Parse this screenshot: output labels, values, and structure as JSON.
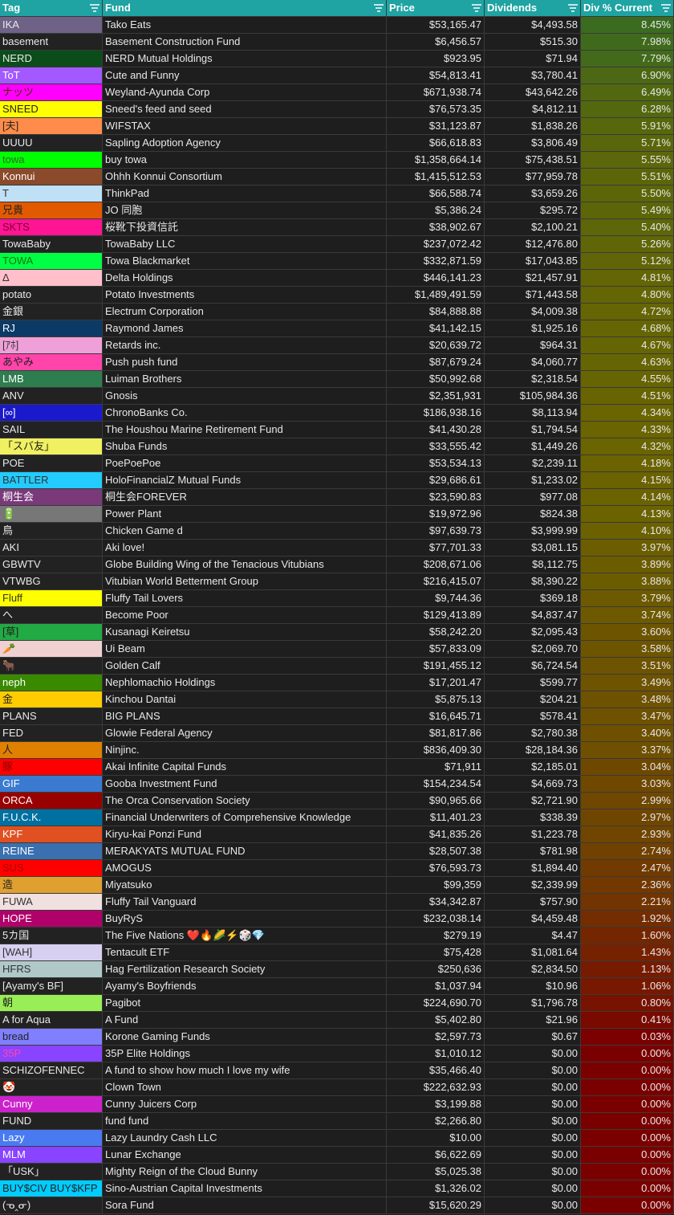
{
  "table": {
    "headers": [
      "Tag",
      "Fund",
      "Price",
      "Dividends",
      "Div % Current"
    ],
    "rows": [
      [
        "IKA",
        "Tako Eats",
        "$53,165.47",
        "$4,493.58",
        "8.45%"
      ],
      [
        "basement",
        "Basement Construction Fund",
        "$6,456.57",
        "$515.30",
        "7.98%"
      ],
      [
        "NERD",
        "NERD Mutual Holdings",
        "$923.95",
        "$71.94",
        "7.79%"
      ],
      [
        "ToT",
        "Cute and Funny",
        "$54,813.41",
        "$3,780.41",
        "6.90%"
      ],
      [
        "ナッツ",
        "Weyland-Ayunda Corp",
        "$671,938.74",
        "$43,642.26",
        "6.49%"
      ],
      [
        "SNEED",
        "Sneed's feed and seed",
        "$76,573.35",
        "$4,812.11",
        "6.28%"
      ],
      [
        "[夫]",
        "WIFSTAX",
        "$31,123.87",
        "$1,838.26",
        "5.91%"
      ],
      [
        "UUUU",
        "Sapling Adoption Agency",
        "$66,618.83",
        "$3,806.49",
        "5.71%"
      ],
      [
        "towa",
        "buy towa",
        "$1,358,664.14",
        "$75,438.51",
        "5.55%"
      ],
      [
        "Konnui",
        "Ohhh Konnui Consortium",
        "$1,415,512.53",
        "$77,959.78",
        "5.51%"
      ],
      [
        "T",
        "ThinkPad",
        "$66,588.74",
        "$3,659.26",
        "5.50%"
      ],
      [
        "兄貴",
        "JO 同胞",
        "$5,386.24",
        "$295.72",
        "5.49%"
      ],
      [
        "SKTS",
        "桜靴下投資信託",
        "$38,902.67",
        "$2,100.21",
        "5.40%"
      ],
      [
        "TowaBaby",
        "TowaBaby LLC",
        "$237,072.42",
        "$12,476.80",
        "5.26%"
      ],
      [
        "TOWA",
        "Towa Blackmarket",
        "$332,871.59",
        "$17,043.85",
        "5.12%"
      ],
      [
        "Δ",
        "Delta Holdings",
        "$446,141.23",
        "$21,457.91",
        "4.81%"
      ],
      [
        "potato",
        "Potato Investments",
        "$1,489,491.59",
        "$71,443.58",
        "4.80%"
      ],
      [
        "金銀",
        "Electrum Corporation",
        "$84,888.88",
        "$4,009.38",
        "4.72%"
      ],
      [
        "RJ",
        "Raymond James",
        "$41,142.15",
        "$1,925.16",
        "4.68%"
      ],
      [
        "[ｱﾎ]",
        "Retards inc.",
        "$20,639.72",
        "$964.31",
        "4.67%"
      ],
      [
        "あやみ",
        "Push push fund",
        "$87,679.24",
        "$4,060.77",
        "4.63%"
      ],
      [
        "LMB",
        "Luiman Brothers",
        "$50,992.68",
        "$2,318.54",
        "4.55%"
      ],
      [
        "ANV",
        "Gnosis",
        "$2,351,931",
        "$105,984.36",
        "4.51%"
      ],
      [
        "[∞]",
        "ChronoBanks Co.",
        "$186,938.16",
        "$8,113.94",
        "4.34%"
      ],
      [
        "SAIL",
        "The Houshou Marine Retirement Fund",
        "$41,430.28",
        "$1,794.54",
        "4.33%"
      ],
      [
        "「スバ友」",
        "Shuba Funds",
        "$33,555.42",
        "$1,449.26",
        "4.32%"
      ],
      [
        "POE",
        "PoePoePoe",
        "$53,534.13",
        "$2,239.11",
        "4.18%"
      ],
      [
        "BATTLER",
        "HoloFinancialZ Mutual Funds",
        "$29,686.61",
        "$1,233.02",
        "4.15%"
      ],
      [
        "桐生会",
        "桐生会FOREVER",
        "$23,590.83",
        "$977.08",
        "4.14%"
      ],
      [
        "🔋",
        "Power Plant",
        "$19,972.96",
        "$824.38",
        "4.13%"
      ],
      [
        "鳥",
        "Chicken Game d",
        "$97,639.73",
        "$3,999.99",
        "4.10%"
      ],
      [
        "AKI",
        "Aki love!",
        "$77,701.33",
        "$3,081.15",
        "3.97%"
      ],
      [
        "GBWTV",
        "Globe Building Wing of the Tenacious Vitubians",
        "$208,671.06",
        "$8,112.75",
        "3.89%"
      ],
      [
        "VTWBG",
        "Vitubian World Betterment Group",
        "$216,415.07",
        "$8,390.22",
        "3.88%"
      ],
      [
        "Fluff",
        "Fluffy Tail Lovers",
        "$9,744.36",
        "$369.18",
        "3.79%"
      ],
      [
        "へ",
        "Become Poor",
        "$129,413.89",
        "$4,837.47",
        "3.74%"
      ],
      [
        "[草]",
        "Kusanagi Keiretsu",
        "$58,242.20",
        "$2,095.43",
        "3.60%"
      ],
      [
        "🥕",
        "Ui Beam",
        "$57,833.09",
        "$2,069.70",
        "3.58%"
      ],
      [
        "🐂",
        "Golden Calf",
        "$191,455.12",
        "$6,724.54",
        "3.51%"
      ],
      [
        "neph",
        "Nephlomachio Holdings",
        "$17,201.47",
        "$599.77",
        "3.49%"
      ],
      [
        "金",
        "Kinchou Dantai",
        "$5,875.13",
        "$204.21",
        "3.48%"
      ],
      [
        "PLANS",
        "BIG PLANS",
        "$16,645.71",
        "$578.41",
        "3.47%"
      ],
      [
        "FED",
        "Glowie Federal Agency",
        "$81,817.86",
        "$2,780.38",
        "3.40%"
      ],
      [
        "人",
        "Ninjinc.",
        "$836,409.30",
        "$28,184.36",
        "3.37%"
      ],
      [
        "豚",
        "Akai Infinite Capital Funds",
        "$71,911",
        "$2,185.01",
        "3.04%"
      ],
      [
        "GIF",
        "Gooba Investment Fund",
        "$154,234.54",
        "$4,669.73",
        "3.03%"
      ],
      [
        "ORCA",
        "The Orca Conservation Society",
        "$90,965.66",
        "$2,721.90",
        "2.99%"
      ],
      [
        "F.U.C.K.",
        "Financial Underwriters of Comprehensive Knowledge",
        "$11,401.23",
        "$338.39",
        "2.97%"
      ],
      [
        "KPF",
        "Kiryu-kai Ponzi Fund",
        "$41,835.26",
        "$1,223.78",
        "2.93%"
      ],
      [
        "REINE",
        "MERAKYATS MUTUAL FUND",
        "$28,507.38",
        "$781.98",
        "2.74%"
      ],
      [
        "SUS",
        "AMOGUS",
        "$76,593.73",
        "$1,894.40",
        "2.47%"
      ],
      [
        "造",
        "Miyatsuko",
        "$99,359",
        "$2,339.99",
        "2.36%"
      ],
      [
        "FUWA",
        "Fluffy Tail Vanguard",
        "$34,342.87",
        "$757.90",
        "2.21%"
      ],
      [
        "HOPE",
        "BuyRyS",
        "$232,038.14",
        "$4,459.48",
        "1.92%"
      ],
      [
        "5カ国",
        "The Five Nations ❤️🔥🌽⚡🎲💎",
        "$279.19",
        "$4.47",
        "1.60%"
      ],
      [
        "[WAH]",
        "Tentacult ETF",
        "$75,428",
        "$1,081.64",
        "1.43%"
      ],
      [
        "HFRS",
        "Hag Fertilization Research Society",
        "$250,636",
        "$2,834.50",
        "1.13%"
      ],
      [
        "[Ayamy's BF]",
        "Ayamy's Boyfriends",
        "$1,037.94",
        "$10.96",
        "1.06%"
      ],
      [
        "朝",
        "Pagibot",
        "$224,690.70",
        "$1,796.78",
        "0.80%"
      ],
      [
        "A for Aqua",
        "A Fund",
        "$5,402.80",
        "$21.96",
        "0.41%"
      ],
      [
        "bread",
        "Korone Gaming Funds",
        "$2,597.73",
        "$0.67",
        "0.03%"
      ],
      [
        "35P",
        "35P Elite Holdings",
        "$1,010.12",
        "$0.00",
        "0.00%"
      ],
      [
        "SCHIZOFENNEC",
        "A fund to show how much I love my wife",
        "$35,466.40",
        "$0.00",
        "0.00%"
      ],
      [
        "🤡",
        "Clown Town",
        "$222,632.93",
        "$0.00",
        "0.00%"
      ],
      [
        "Cunny",
        "Cunny Juicers Corp",
        "$3,199.88",
        "$0.00",
        "0.00%"
      ],
      [
        "FUND",
        "fund fund",
        "$2,266.80",
        "$0.00",
        "0.00%"
      ],
      [
        "Lazy",
        "Lazy Laundry Cash LLC",
        "$10.00",
        "$0.00",
        "0.00%"
      ],
      [
        "MLM",
        "Lunar Exchange",
        "$6,622.69",
        "$0.00",
        "0.00%"
      ],
      [
        "「USK」",
        "Mighty Reign of the Cloud Bunny",
        "$5,025.38",
        "$0.00",
        "0.00%"
      ],
      [
        "BUY$CIV BUY$KFP",
        "Sino-Austrian Capital Investments",
        "$1,326.02",
        "$0.00",
        "0.00%"
      ],
      [
        "(ᓀ‸ᓂ)",
        "Sora Fund",
        "$15,620.29",
        "$0.00",
        "0.00%"
      ]
    ],
    "tag_colors": [
      [
        "#6f6287",
        "#e8e8e8"
      ],
      [
        "#222222",
        "#e8e8e8"
      ],
      [
        "#0b4d1a",
        "#e8e8e8"
      ],
      [
        "#a259ff",
        "#ffffff"
      ],
      [
        "#ff00ff",
        "#4a2000"
      ],
      [
        "#ffff00",
        "#222222"
      ],
      [
        "#ff8c4a",
        "#222222"
      ],
      [
        "#222222",
        "#e8e8e8"
      ],
      [
        "#00ff00",
        "#336633"
      ],
      [
        "#8b4a2a",
        "#ffffff"
      ],
      [
        "#bfe0f5",
        "#333333"
      ],
      [
        "#e25a00",
        "#222222"
      ],
      [
        "#ff1493",
        "#7a0035"
      ],
      [
        "#222222",
        "#e8e8e8"
      ],
      [
        "#00ff44",
        "#117711"
      ],
      [
        "#ffc0cb",
        "#333333"
      ],
      [
        "#222222",
        "#e8e8e8"
      ],
      [
        "#222222",
        "#e8e8e8"
      ],
      [
        "#0b3a66",
        "#ffffff"
      ],
      [
        "#f0a0d8",
        "#333333"
      ],
      [
        "#ff44aa",
        "#222222"
      ],
      [
        "#2e7d4f",
        "#ffffff"
      ],
      [
        "#222222",
        "#e8e8e8"
      ],
      [
        "#1a1acc",
        "#ffffff"
      ],
      [
        "#222222",
        "#e8e8e8"
      ],
      [
        "#f0f060",
        "#222222"
      ],
      [
        "#222222",
        "#e8e8e8"
      ],
      [
        "#22ccff",
        "#333333"
      ],
      [
        "#7a3a7a",
        "#ffffff"
      ],
      [
        "#777777",
        "#ffffff"
      ],
      [
        "#222222",
        "#e8e8e8"
      ],
      [
        "#222222",
        "#e8e8e8"
      ],
      [
        "#222222",
        "#e8e8e8"
      ],
      [
        "#222222",
        "#e8e8e8"
      ],
      [
        "#ffff00",
        "#333333"
      ],
      [
        "#222222",
        "#e8e8e8"
      ],
      [
        "#22aa44",
        "#222222"
      ],
      [
        "#f0d0d0",
        "#333333"
      ],
      [
        "#222222",
        "#e8e8e8"
      ],
      [
        "#3a8a00",
        "#ffffff"
      ],
      [
        "#ffcc00",
        "#222222"
      ],
      [
        "#222222",
        "#e8e8e8"
      ],
      [
        "#222222",
        "#e8e8e8"
      ],
      [
        "#e08000",
        "#222222"
      ],
      [
        "#ff0000",
        "#880000"
      ],
      [
        "#3a7ad0",
        "#ffffff"
      ],
      [
        "#990000",
        "#ffffff"
      ],
      [
        "#0070a0",
        "#ffffff"
      ],
      [
        "#e05020",
        "#ffffff"
      ],
      [
        "#3a70b0",
        "#ffffff"
      ],
      [
        "#ff0000",
        "#aa0000"
      ],
      [
        "#e0a030",
        "#222222"
      ],
      [
        "#f0e0e0",
        "#333333"
      ],
      [
        "#b0006a",
        "#ffffff"
      ],
      [
        "#222222",
        "#e8e8e8"
      ],
      [
        "#d8d0f0",
        "#333333"
      ],
      [
        "#b0c8c8",
        "#333333"
      ],
      [
        "#222222",
        "#e8e8e8"
      ],
      [
        "#99ee55",
        "#222222"
      ],
      [
        "#222222",
        "#e8e8e8"
      ],
      [
        "#8080ff",
        "#222222"
      ],
      [
        "#8844ff",
        "#ff44aa"
      ],
      [
        "#222222",
        "#e8e8e8"
      ],
      [
        "#222222",
        "#e8e8e8"
      ],
      [
        "#cc22cc",
        "#ffffff"
      ],
      [
        "#222222",
        "#e8e8e8"
      ],
      [
        "#4a7af0",
        "#ffffff"
      ],
      [
        "#8844ff",
        "#ffffff"
      ],
      [
        "#222222",
        "#e8e8e8"
      ],
      [
        "#00ccff",
        "#222222"
      ],
      [
        "#222222",
        "#e8e8e8"
      ]
    ],
    "header_color": "#1fa3a3",
    "scale_colors": [
      "#7a0000",
      "#6b6400",
      "#3a6b1f"
    ]
  }
}
